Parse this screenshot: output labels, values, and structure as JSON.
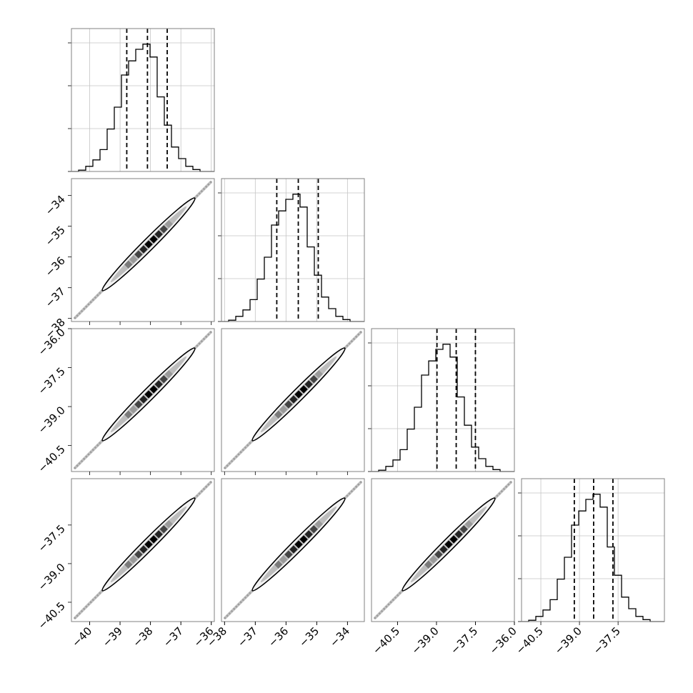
{
  "chart_data": {
    "type": "corner",
    "grid": true,
    "variables": [
      {
        "range": [
          -40.6,
          -35.9
        ],
        "ticks": [
          -40,
          -39,
          -38,
          -37,
          -36
        ],
        "tick_labels": [
          "−40",
          "−39",
          "−38",
          "−37",
          "−36"
        ],
        "quantiles": [
          -38.78,
          -38.1,
          -37.45
        ]
      },
      {
        "range": [
          -38.1,
          -33.45
        ],
        "ticks": [
          -38,
          -37,
          -36,
          -35,
          -34
        ],
        "tick_labels": [
          "−38",
          "−37",
          "−36",
          "−35",
          "−34"
        ],
        "quantiles": [
          -36.3,
          -35.6,
          -34.95
        ]
      },
      {
        "range": [
          -41.5,
          -36.0
        ],
        "ticks": [
          -40.5,
          -39.0,
          -37.5,
          -36.0
        ],
        "tick_labels": [
          "−40.5",
          "−39.0",
          "−37.5",
          "−36.0"
        ],
        "quantiles": [
          -38.98,
          -38.24,
          -37.5
        ]
      },
      {
        "range": [
          -41.25,
          -35.7
        ],
        "ticks": [
          -40.5,
          -39.0,
          -37.5
        ],
        "tick_labels": [
          "−40.5",
          "−39.0",
          "−37.5"
        ],
        "quantiles": [
          -39.2,
          -38.45,
          -37.7
        ]
      }
    ],
    "histogram_profile": [
      0.0,
      0.01,
      0.04,
      0.09,
      0.17,
      0.33,
      0.5,
      0.75,
      0.86,
      0.95,
      0.99,
      0.89,
      0.58,
      0.36,
      0.19,
      0.1,
      0.04,
      0.015,
      0.0,
      0.0
    ],
    "histograms": [
      {
        "var": 0,
        "bins": 20
      },
      {
        "var": 1,
        "bins": 20
      },
      {
        "var": 2,
        "bins": 20
      },
      {
        "var": 3,
        "bins": 20
      }
    ],
    "pairs": [
      {
        "x": 0,
        "y": 1
      },
      {
        "x": 0,
        "y": 2
      },
      {
        "x": 1,
        "y": 2
      },
      {
        "x": 0,
        "y": 3
      },
      {
        "x": 1,
        "y": 3
      },
      {
        "x": 2,
        "y": 3
      }
    ]
  }
}
